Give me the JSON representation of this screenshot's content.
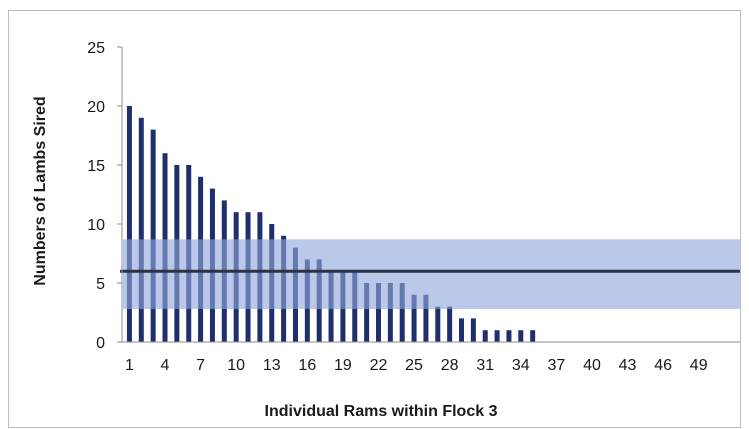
{
  "chart_data": {
    "type": "bar",
    "title": "",
    "xlabel": "Individual Rams within Flock 3",
    "ylabel": "Numbers of Lambs Sired",
    "ylim": [
      0,
      25
    ],
    "yticks": [
      0,
      5,
      10,
      15,
      20,
      25
    ],
    "x_range": [
      1,
      51
    ],
    "xticks": [
      1,
      4,
      7,
      10,
      13,
      16,
      19,
      22,
      25,
      28,
      31,
      34,
      37,
      40,
      43,
      46,
      49
    ],
    "categories": [
      1,
      2,
      3,
      4,
      5,
      6,
      7,
      8,
      9,
      10,
      11,
      12,
      13,
      14,
      15,
      16,
      17,
      18,
      19,
      20,
      21,
      22,
      23,
      24,
      25,
      26,
      27,
      28,
      29,
      30,
      31,
      32,
      33,
      34,
      35,
      36,
      37,
      38,
      39,
      40,
      41,
      42,
      43,
      44,
      45,
      46,
      47,
      48,
      49,
      50,
      51
    ],
    "values": [
      20,
      19,
      18,
      16,
      15,
      15,
      14,
      13,
      12,
      11,
      11,
      11,
      10,
      9,
      8,
      7,
      7,
      6,
      6,
      6,
      5,
      5,
      5,
      5,
      4,
      4,
      3,
      3,
      2,
      2,
      1,
      1,
      1,
      1,
      1,
      0,
      0,
      0,
      0,
      0,
      0,
      0,
      0,
      0,
      0,
      0,
      0,
      0,
      0,
      0,
      0
    ],
    "mean_line": 6,
    "band": [
      2.8,
      8.7
    ],
    "grid": false,
    "legend": "none",
    "colors": {
      "bar": "#1f2f6b",
      "band": "#8fa8dc",
      "mean_line": "#2b3340",
      "axis": "#8c8c8c"
    }
  }
}
